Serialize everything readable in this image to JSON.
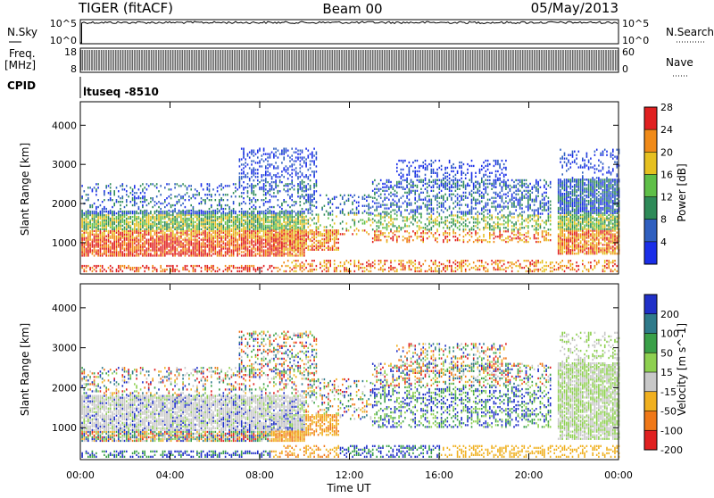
{
  "header": {
    "radar": "TIGER (fitACF)",
    "beam": "Beam 00",
    "date": "05/May/2013"
  },
  "strips": {
    "nsky_label": "N.Sky",
    "nsky_ticks": [
      "10^5",
      "10^0"
    ],
    "nsearch_label": "N.Search",
    "nsearch_ticks": [
      "10^5",
      "10^0"
    ],
    "freq_label": "Freq.",
    "freq_unit": "[MHz]",
    "freq_ticks": [
      "18",
      "8"
    ],
    "nave_label": "Nave",
    "nave_ticks": [
      "60",
      "0"
    ],
    "cpid_label": "CPID",
    "cpid_value": "ltuseq -8510"
  },
  "chart_data": [
    {
      "type": "heatmap",
      "title": "",
      "ylabel": "Slant Range [km]",
      "xlabel": "",
      "ylim": [
        200,
        4600
      ],
      "yticks": [
        "1000",
        "2000",
        "3000",
        "4000"
      ],
      "colorbar_label": "Power [dB]",
      "colorbar_ticks": [
        "4",
        "8",
        "12",
        "16",
        "20",
        "24",
        "28"
      ],
      "colorbar_colors": [
        "#1a2ee8",
        "#2f5fbf",
        "#2e8a58",
        "#5fbf48",
        "#e6c020",
        "#f08a18",
        "#e02020"
      ]
    },
    {
      "type": "heatmap",
      "title": "",
      "ylabel": "Slant Range [km]",
      "xlabel": "Time UT",
      "xticks": [
        "00:00",
        "04:00",
        "08:00",
        "12:00",
        "16:00",
        "20:00",
        "00:00"
      ],
      "ylim": [
        200,
        4600
      ],
      "yticks": [
        "1000",
        "2000",
        "3000",
        "4000"
      ],
      "colorbar_label": "Velocity [m s^-1]",
      "colorbar_ticks": [
        "200",
        "100",
        "50",
        "15",
        "-15",
        "-50",
        "-100",
        "-200"
      ],
      "colorbar_colors": [
        "#2030c8",
        "#2f7a8a",
        "#3aa048",
        "#8ed050",
        "#c8c8c8",
        "#f0b020",
        "#f07818",
        "#e02020"
      ]
    }
  ]
}
